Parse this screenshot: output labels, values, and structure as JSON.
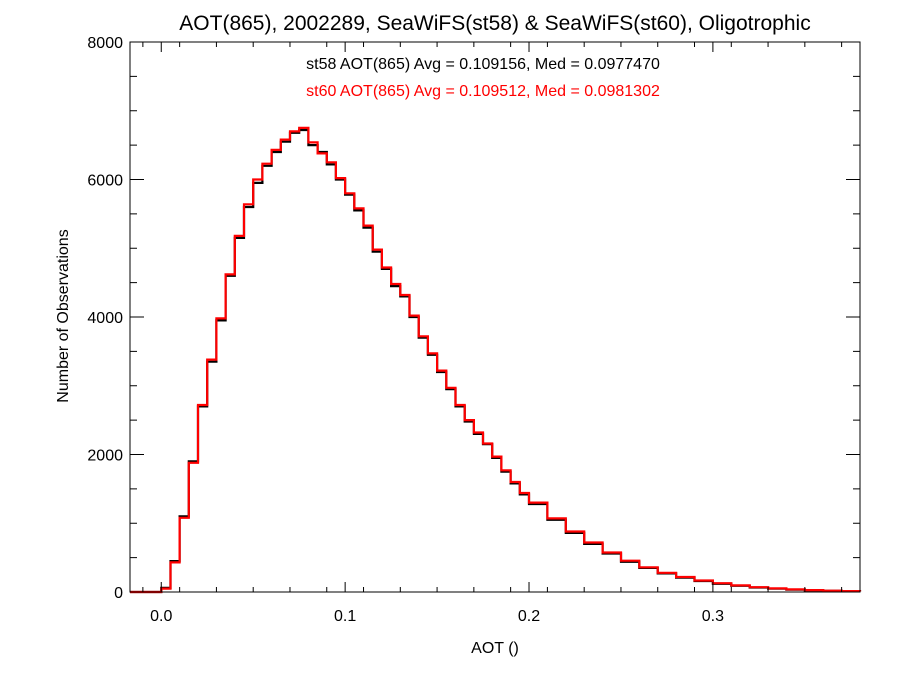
{
  "chart_data": {
    "type": "line",
    "title": "AOT(865), 2002289, SeaWiFS(st58) & SeaWiFS(st60), Oligotrophic",
    "xlabel": "AOT ()",
    "ylabel": "Number of Observations",
    "xlim": [
      -0.017,
      0.38
    ],
    "ylim": [
      0,
      8000
    ],
    "x_ticks": [
      0.0,
      0.1,
      0.2,
      0.3
    ],
    "x_tick_labels": [
      "0.0",
      "0.1",
      "0.2",
      "0.3"
    ],
    "y_ticks": [
      0,
      2000,
      4000,
      6000,
      8000
    ],
    "y_tick_labels": [
      "0",
      "2000",
      "4000",
      "6000",
      "8000"
    ],
    "grid": false,
    "annotations": [
      {
        "text": "st58 AOT(865) Avg = 0.109156, Med = 0.0977470",
        "color": "#000000"
      },
      {
        "text": "st60 AOT(865) Avg = 0.109512, Med = 0.0981302",
        "color": "#ff0000"
      }
    ],
    "series": [
      {
        "color": "#000000",
        "x": [
          -0.017,
          -0.003,
          0.0,
          0.005,
          0.01,
          0.015,
          0.02,
          0.025,
          0.03,
          0.035,
          0.04,
          0.045,
          0.05,
          0.055,
          0.06,
          0.065,
          0.07,
          0.075,
          0.08,
          0.085,
          0.09,
          0.095,
          0.1,
          0.105,
          0.11,
          0.115,
          0.12,
          0.125,
          0.13,
          0.135,
          0.14,
          0.145,
          0.15,
          0.155,
          0.16,
          0.165,
          0.17,
          0.175,
          0.18,
          0.185,
          0.19,
          0.195,
          0.2,
          0.21,
          0.22,
          0.23,
          0.24,
          0.25,
          0.26,
          0.27,
          0.28,
          0.29,
          0.3,
          0.31,
          0.32,
          0.33,
          0.34,
          0.35,
          0.36,
          0.37,
          0.38
        ],
        "y": [
          0,
          0,
          60,
          450,
          1100,
          1900,
          2700,
          3350,
          3950,
          4600,
          5150,
          5600,
          5950,
          6200,
          6400,
          6550,
          6680,
          6720,
          6500,
          6400,
          6220,
          6000,
          5780,
          5550,
          5300,
          4950,
          4700,
          4450,
          4300,
          4000,
          3700,
          3450,
          3200,
          2950,
          2700,
          2480,
          2300,
          2150,
          1950,
          1750,
          1580,
          1420,
          1280,
          1050,
          860,
          700,
          560,
          440,
          350,
          270,
          210,
          160,
          120,
          90,
          65,
          50,
          35,
          25,
          18,
          12,
          8
        ]
      },
      {
        "color": "#ff0000",
        "x": [
          -0.017,
          -0.003,
          0.0,
          0.005,
          0.01,
          0.015,
          0.02,
          0.025,
          0.03,
          0.035,
          0.04,
          0.045,
          0.05,
          0.055,
          0.06,
          0.065,
          0.07,
          0.075,
          0.08,
          0.085,
          0.09,
          0.095,
          0.1,
          0.105,
          0.11,
          0.115,
          0.12,
          0.125,
          0.13,
          0.135,
          0.14,
          0.145,
          0.15,
          0.155,
          0.16,
          0.165,
          0.17,
          0.175,
          0.18,
          0.185,
          0.19,
          0.195,
          0.2,
          0.21,
          0.22,
          0.23,
          0.24,
          0.25,
          0.26,
          0.27,
          0.28,
          0.29,
          0.3,
          0.31,
          0.32,
          0.33,
          0.34,
          0.35,
          0.36,
          0.37,
          0.38
        ],
        "y": [
          0,
          0,
          50,
          430,
          1080,
          1880,
          2720,
          3380,
          3980,
          4620,
          5180,
          5640,
          6000,
          6230,
          6430,
          6580,
          6700,
          6750,
          6540,
          6380,
          6250,
          6020,
          5800,
          5580,
          5330,
          4980,
          4720,
          4480,
          4320,
          4020,
          3720,
          3470,
          3220,
          2970,
          2720,
          2500,
          2320,
          2160,
          1970,
          1770,
          1600,
          1440,
          1300,
          1070,
          880,
          720,
          575,
          455,
          360,
          280,
          218,
          168,
          128,
          96,
          70,
          52,
          38,
          27,
          19,
          13,
          8
        ]
      }
    ]
  }
}
